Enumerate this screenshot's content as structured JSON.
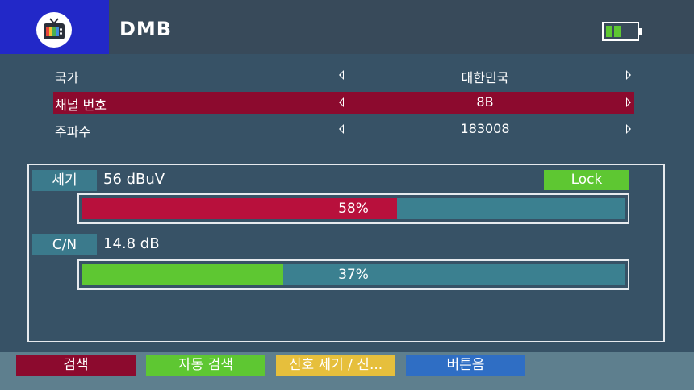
{
  "header": {
    "title": "DMB",
    "logo_icon": "tv-icon",
    "battery_icon": "battery-icon"
  },
  "settings": [
    {
      "label": "국가",
      "value": "대한민국",
      "selected": false
    },
    {
      "label": "채널 번호",
      "value": "8B",
      "selected": true
    },
    {
      "label": "주파수",
      "value": "183008",
      "selected": false
    }
  ],
  "signal": {
    "strength_label": "세기",
    "strength_value": "56 dBuV",
    "lock_label": "Lock",
    "strength_percent_text": "58%",
    "strength_percent": 58,
    "cn_label": "C/N",
    "cn_value": "14.8 dB",
    "cn_percent_text": "37%",
    "cn_percent": 37
  },
  "footer": {
    "buttons": [
      {
        "label": "검색",
        "color": "#8c0a2e"
      },
      {
        "label": "자동 검색",
        "color": "#5ec732"
      },
      {
        "label": "신호 세기 / 신...",
        "color": "#e6bf3c"
      },
      {
        "label": "버튼음",
        "color": "#2f6ec4"
      }
    ]
  },
  "colors": {
    "strength_bar": "#b8103c",
    "cn_bar": "#5ec732",
    "track": "#3b8090",
    "selected_row": "#8c0a2e"
  }
}
